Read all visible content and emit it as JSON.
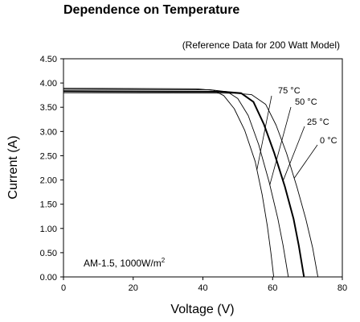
{
  "title": "Dependence on Temperature",
  "subtitle": "(Reference Data for 200 Watt Model)",
  "chart_data": {
    "type": "line",
    "xlabel": "Voltage (V)",
    "ylabel": "Current (A)",
    "xlim": [
      0,
      80
    ],
    "ylim": [
      0,
      4.5
    ],
    "xticks": [
      "0",
      "20",
      "40",
      "60",
      "80"
    ],
    "yticks": [
      "0.00",
      "0.50",
      "1.00",
      "1.50",
      "2.00",
      "2.50",
      "3.00",
      "3.50",
      "4.00",
      "4.50"
    ],
    "grid": false,
    "annotation": {
      "text": "AM-1.5, 1000W/m",
      "superscript": "2"
    },
    "series": [
      {
        "name": "75 °C",
        "label_main": "75",
        "label_unit": "°C",
        "emphasis": false,
        "points": [
          [
            0,
            3.89
          ],
          [
            38,
            3.88
          ],
          [
            43,
            3.85
          ],
          [
            46,
            3.74
          ],
          [
            49,
            3.47
          ],
          [
            52,
            3.02
          ],
          [
            55,
            2.38
          ],
          [
            57,
            1.7
          ],
          [
            58.5,
            1.05
          ],
          [
            59.5,
            0.5
          ],
          [
            60.3,
            0
          ]
        ]
      },
      {
        "name": "50 °C",
        "label_main": "50",
        "label_unit": "°C",
        "emphasis": false,
        "points": [
          [
            0,
            3.87
          ],
          [
            42,
            3.86
          ],
          [
            47,
            3.82
          ],
          [
            50,
            3.68
          ],
          [
            53,
            3.33
          ],
          [
            56,
            2.73
          ],
          [
            59,
            1.96
          ],
          [
            61.5,
            1.2
          ],
          [
            63,
            0.65
          ],
          [
            64.5,
            0
          ]
        ]
      },
      {
        "name": "25 °C",
        "label_main": "25",
        "label_unit": "°C",
        "emphasis": true,
        "points": [
          [
            0,
            3.83
          ],
          [
            46,
            3.82
          ],
          [
            51,
            3.79
          ],
          [
            54.5,
            3.61
          ],
          [
            57.5,
            3.15
          ],
          [
            60.5,
            2.55
          ],
          [
            63.5,
            1.87
          ],
          [
            66,
            1.2
          ],
          [
            67.5,
            0.65
          ],
          [
            69,
            0
          ]
        ]
      },
      {
        "name": "0 °C",
        "label_main": "0",
        "label_unit": "°C",
        "emphasis": false,
        "points": [
          [
            0,
            3.8
          ],
          [
            49,
            3.79
          ],
          [
            54,
            3.76
          ],
          [
            58,
            3.56
          ],
          [
            61,
            3.13
          ],
          [
            64,
            2.55
          ],
          [
            67,
            1.85
          ],
          [
            69.5,
            1.2
          ],
          [
            71.5,
            0.6
          ],
          [
            73,
            0
          ]
        ]
      }
    ]
  }
}
